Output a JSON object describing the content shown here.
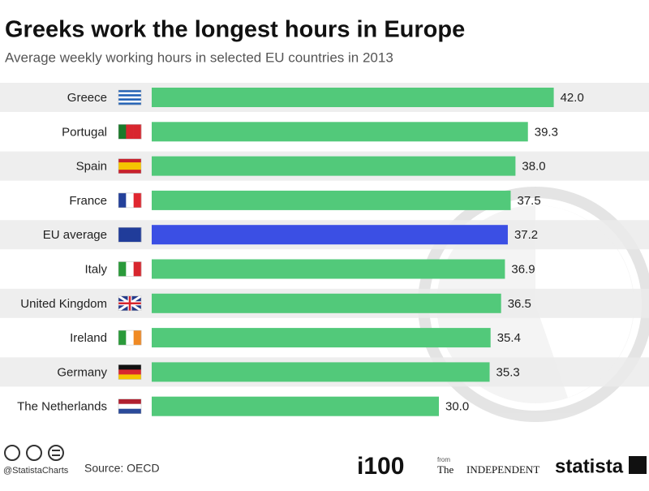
{
  "chart_data": {
    "type": "bar",
    "orientation": "horizontal",
    "title": "Greeks work the longest hours in Europe",
    "subtitle": "Average weekly working hours in selected EU countries in 2013",
    "categories": [
      "Greece",
      "Portugal",
      "Spain",
      "France",
      "EU average",
      "Italy",
      "United Kingdom",
      "Ireland",
      "Germany",
      "The Netherlands"
    ],
    "values": [
      42.0,
      39.3,
      38.0,
      37.5,
      37.2,
      36.9,
      36.5,
      35.4,
      35.3,
      30.0
    ],
    "value_labels": [
      "42.0",
      "39.3",
      "38.0",
      "37.5",
      "37.2",
      "36.9",
      "36.5",
      "35.4",
      "35.3",
      "30.0"
    ],
    "colors": [
      "#52c97a",
      "#52c97a",
      "#52c97a",
      "#52c97a",
      "#3b4fe4",
      "#52c97a",
      "#52c97a",
      "#52c97a",
      "#52c97a",
      "#52c97a"
    ],
    "source": "Source: OECD"
  },
  "footer": {
    "handle": "@StatistaCharts",
    "brand1": "i100",
    "from": "from",
    "the": "The",
    "independent": "INDEPENDENT",
    "brand2": "statista"
  }
}
